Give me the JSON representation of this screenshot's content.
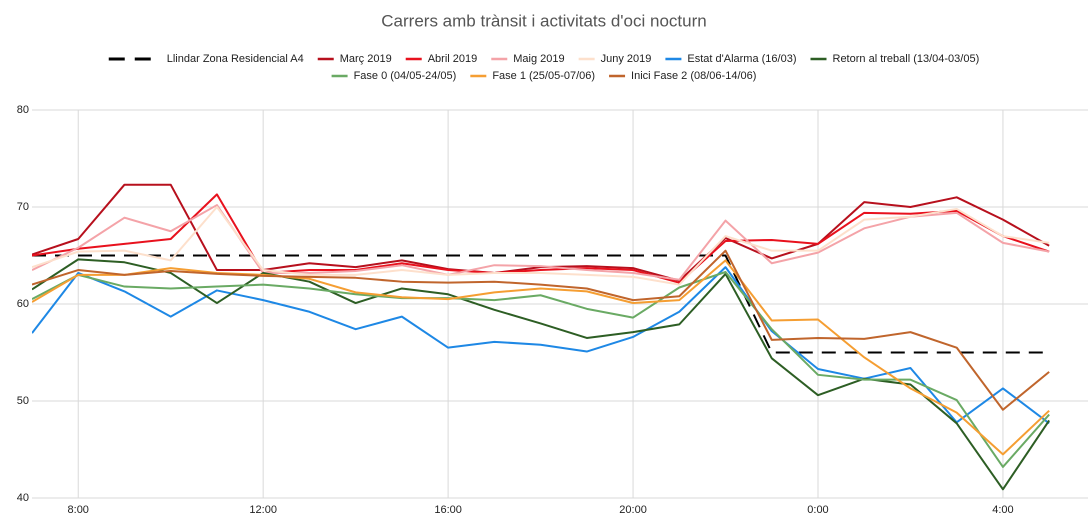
{
  "chart_data": {
    "type": "line",
    "title": "Carrers amb trànsit i activitats d'oci nocturn",
    "x": [
      7,
      8,
      9,
      10,
      11,
      12,
      13,
      14,
      15,
      16,
      17,
      18,
      19,
      20,
      21,
      22,
      23,
      24,
      25,
      26,
      27,
      28,
      29
    ],
    "xlim": [
      7,
      29.84
    ],
    "xticks": [
      {
        "value": 8,
        "label": "8:00"
      },
      {
        "value": 12,
        "label": "12:00"
      },
      {
        "value": 16,
        "label": "16:00"
      },
      {
        "value": 20,
        "label": "20:00"
      },
      {
        "value": 24,
        "label": "0:00"
      },
      {
        "value": 28,
        "label": "4:00"
      }
    ],
    "ylim": [
      40,
      80
    ],
    "yticks": [
      40,
      50,
      60,
      70,
      80
    ],
    "grid": true,
    "series": [
      {
        "name": "Llindar Zona Residencial A4",
        "color": "#000000",
        "dashed": true,
        "values": [
          65,
          65,
          65,
          65,
          65,
          65,
          65,
          65,
          65,
          65,
          65,
          65,
          65,
          65,
          65,
          65,
          55,
          55,
          55,
          55,
          55,
          55,
          55
        ]
      },
      {
        "name": "Març 2019",
        "color": "#b7101d",
        "values": [
          65.1,
          66.7,
          72.3,
          72.3,
          63.5,
          63.5,
          64.2,
          63.8,
          64.5,
          63.6,
          63.2,
          63.8,
          63.9,
          63.7,
          62.4,
          66.8,
          64.7,
          66.2,
          70.5,
          70.0,
          71.0,
          68.7,
          66.0
        ]
      },
      {
        "name": "Abril 2019",
        "color": "#e8111d",
        "values": [
          65.0,
          65.7,
          66.2,
          66.7,
          71.3,
          63.2,
          63.5,
          63.5,
          64.2,
          63.5,
          63.2,
          63.5,
          63.7,
          63.5,
          62.2,
          66.5,
          66.6,
          66.2,
          69.4,
          69.3,
          69.6,
          67.0,
          65.4
        ]
      },
      {
        "name": "Maig 2019",
        "color": "#f4a3a8",
        "values": [
          63.5,
          65.8,
          68.9,
          67.5,
          70.2,
          63.2,
          63.2,
          63.4,
          64.0,
          63.0,
          64.0,
          63.9,
          63.5,
          63.2,
          62.5,
          68.6,
          64.2,
          65.3,
          67.8,
          69.0,
          69.4,
          66.3,
          65.4
        ]
      },
      {
        "name": "Juny 2019",
        "color": "#fde0cc",
        "values": [
          63.8,
          65.4,
          65.5,
          64.5,
          70.0,
          63.5,
          63.0,
          63.0,
          63.5,
          63.0,
          63.2,
          63.2,
          63.0,
          62.8,
          62.0,
          67.0,
          65.5,
          65.5,
          68.7,
          69.0,
          69.8,
          67.0,
          66.3
        ]
      },
      {
        "name": "Estat d'Alarma (16/03)",
        "color": "#1e88e5",
        "values": [
          57.0,
          63.2,
          61.3,
          58.7,
          61.4,
          60.4,
          59.2,
          57.4,
          58.7,
          55.5,
          56.1,
          55.8,
          55.1,
          56.6,
          59.2,
          63.8,
          57.2,
          53.3,
          52.3,
          53.4,
          47.8,
          51.3,
          47.7
        ]
      },
      {
        "name": "Retorn al treball (13/04-03/05)",
        "color": "#2d5e24",
        "values": [
          61.5,
          64.6,
          64.3,
          63.2,
          60.1,
          63.2,
          62.3,
          60.1,
          61.6,
          61.0,
          59.4,
          58.0,
          56.5,
          57.1,
          57.9,
          63.1,
          54.4,
          50.6,
          52.3,
          51.7,
          47.7,
          40.9,
          48.0
        ]
      },
      {
        "name": "Fase 0 (04/05-24/05)",
        "color": "#6aaa64",
        "values": [
          60.5,
          63.0,
          61.8,
          61.6,
          61.8,
          62.0,
          61.6,
          61.0,
          60.6,
          60.6,
          60.4,
          60.9,
          59.5,
          58.6,
          61.7,
          63.3,
          57.4,
          52.7,
          52.2,
          52.2,
          50.1,
          43.2,
          48.6
        ]
      },
      {
        "name": "Fase 1 (25/05-07/06)",
        "color": "#f59e32",
        "values": [
          60.2,
          63.0,
          63.0,
          63.7,
          63.2,
          63.0,
          62.6,
          61.2,
          60.7,
          60.5,
          61.2,
          61.6,
          61.3,
          60.1,
          60.4,
          64.5,
          58.3,
          58.4,
          54.5,
          51.3,
          48.8,
          44.5,
          49.0
        ]
      },
      {
        "name": "Inici Fase 2 (08/06-14/06)",
        "color": "#c0652c",
        "values": [
          62.0,
          63.5,
          63.0,
          63.4,
          63.1,
          62.9,
          62.8,
          62.7,
          62.3,
          62.2,
          62.3,
          62.0,
          61.6,
          60.4,
          60.8,
          65.5,
          56.3,
          56.5,
          56.4,
          57.1,
          55.5,
          49.1,
          53.0
        ]
      }
    ]
  }
}
